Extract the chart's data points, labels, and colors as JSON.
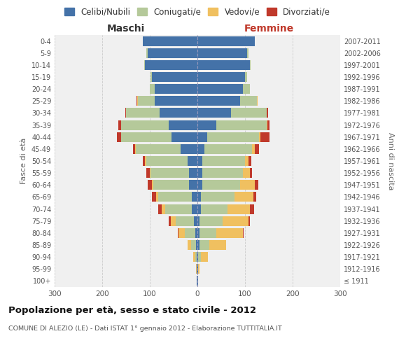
{
  "age_groups": [
    "100+",
    "95-99",
    "90-94",
    "85-89",
    "80-84",
    "75-79",
    "70-74",
    "65-69",
    "60-64",
    "55-59",
    "50-54",
    "45-49",
    "40-44",
    "35-39",
    "30-34",
    "25-29",
    "20-24",
    "15-19",
    "10-14",
    "5-9",
    "0-4"
  ],
  "birth_years": [
    "≤ 1911",
    "1912-1916",
    "1917-1921",
    "1922-1926",
    "1927-1931",
    "1932-1936",
    "1937-1941",
    "1942-1946",
    "1947-1951",
    "1952-1956",
    "1957-1961",
    "1962-1966",
    "1967-1971",
    "1972-1976",
    "1977-1981",
    "1982-1986",
    "1987-1991",
    "1992-1996",
    "1997-2001",
    "2002-2006",
    "2007-2011"
  ],
  "maschi": {
    "celibi": [
      1,
      1,
      2,
      3,
      5,
      8,
      12,
      12,
      18,
      18,
      20,
      35,
      55,
      60,
      80,
      90,
      90,
      95,
      110,
      105,
      115
    ],
    "coniugati": [
      0,
      1,
      3,
      10,
      22,
      38,
      55,
      70,
      75,
      80,
      88,
      95,
      105,
      100,
      70,
      35,
      10,
      3,
      2,
      2,
      0
    ],
    "vedovi": [
      0,
      1,
      4,
      8,
      12,
      10,
      8,
      5,
      3,
      2,
      2,
      1,
      1,
      1,
      0,
      2,
      0,
      0,
      0,
      0,
      0
    ],
    "divorziati": [
      0,
      0,
      0,
      0,
      2,
      5,
      8,
      8,
      8,
      8,
      5,
      5,
      8,
      5,
      2,
      1,
      0,
      0,
      0,
      0,
      0
    ]
  },
  "femmine": {
    "nubili": [
      1,
      1,
      2,
      5,
      5,
      5,
      8,
      8,
      10,
      10,
      10,
      15,
      20,
      40,
      70,
      90,
      95,
      100,
      110,
      105,
      120
    ],
    "coniugate": [
      0,
      1,
      5,
      20,
      35,
      48,
      55,
      70,
      80,
      85,
      90,
      100,
      110,
      105,
      75,
      35,
      15,
      5,
      2,
      2,
      0
    ],
    "vedove": [
      1,
      3,
      15,
      35,
      55,
      55,
      48,
      40,
      30,
      15,
      8,
      5,
      2,
      2,
      1,
      1,
      0,
      0,
      0,
      0,
      0
    ],
    "divorziate": [
      0,
      0,
      0,
      1,
      2,
      3,
      8,
      5,
      8,
      5,
      5,
      10,
      20,
      5,
      3,
      1,
      0,
      0,
      0,
      0,
      0
    ]
  },
  "colors": {
    "celibi": "#4472a8",
    "coniugati": "#b5c99a",
    "vedovi": "#f0c060",
    "divorziati": "#c0392b"
  },
  "legend_labels": [
    "Celibi/Nubili",
    "Coniugati/e",
    "Vedovi/e",
    "Divorziati/e"
  ],
  "title": "Popolazione per età, sesso e stato civile - 2012",
  "subtitle": "COMUNE DI ALEZIO (LE) - Dati ISTAT 1° gennaio 2012 - Elaborazione TUTTITALIA.IT",
  "xlabel_left": "Maschi",
  "xlabel_right": "Femmine",
  "ylabel_left": "Fasce di età",
  "ylabel_right": "Anni di nascita",
  "xlim": 300,
  "fig_bg": "#ffffff",
  "ax_bg": "#f0f0f0",
  "grid_color": "#cccccc"
}
